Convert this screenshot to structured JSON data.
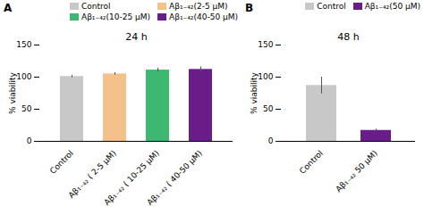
{
  "chart_data": [
    {
      "type": "bar",
      "title": "24 h",
      "annotation": "A",
      "categories": [
        "Control",
        "Aβ₁₋₄₂ ( 2-5 μM)",
        "Aβ₁₋₄₂ ( 10-25 μM)",
        "Aβ₁₋₄₂ ( 40-50 μM)"
      ],
      "values": [
        101,
        105,
        111,
        112
      ],
      "errors": [
        2,
        2,
        3,
        4
      ],
      "colors": [
        "#c8c8c8",
        "#f5c18a",
        "#3db870",
        "#6a1d8a"
      ],
      "error_color": "#555555",
      "ylabel": "% viability",
      "ylim": [
        0,
        150
      ],
      "yticks": [
        0,
        50,
        100,
        150
      ],
      "grid": false,
      "legend": "upper right",
      "legend_entries": [
        {
          "name": "Control",
          "color": "#c8c8c8"
        },
        {
          "name": "Aβ₁₋₄₂(2-5 μM)",
          "color": "#f5c18a"
        },
        {
          "name": "Aβ₁₋₄₂(10-25 μM)",
          "color": "#3db870"
        },
        {
          "name": "Aβ₁₋₄₂(40-50 μM)",
          "color": "#6a1d8a"
        }
      ]
    },
    {
      "type": "bar",
      "title": "48 h",
      "annotation": "B",
      "categories": [
        "Control",
        "Aβ₁₋₄₂ 50 μM)"
      ],
      "values": [
        87,
        17
      ],
      "errors": [
        13,
        2
      ],
      "colors": [
        "#c8c8c8",
        "#6a1d8a"
      ],
      "error_color": "#555555",
      "ylabel": "% viability",
      "ylim": [
        0,
        150
      ],
      "yticks": [
        0,
        50,
        100,
        150
      ],
      "grid": false,
      "legend": "upper right",
      "legend_entries": [
        {
          "name": "Control",
          "color": "#c8c8c8"
        },
        {
          "name": "Aβ₁₋₄₂(50 μM)",
          "color": "#6a1d8a"
        }
      ]
    }
  ]
}
